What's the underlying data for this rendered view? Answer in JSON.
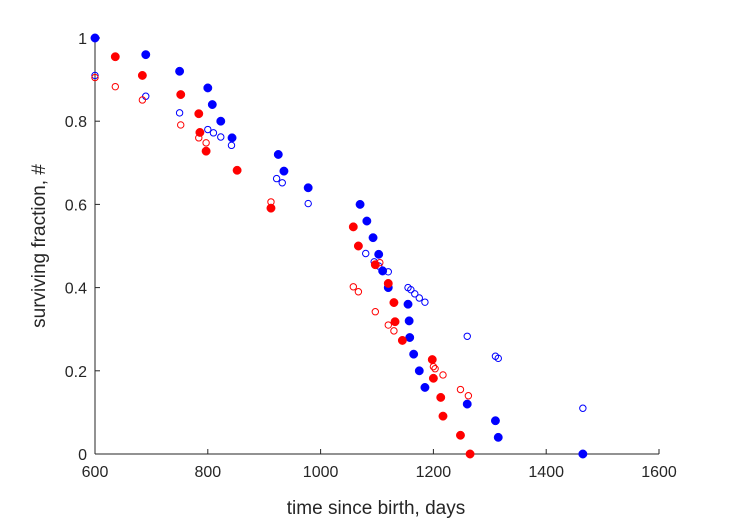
{
  "chart_data": {
    "type": "scatter",
    "title": "",
    "xlabel": "time since birth, days",
    "ylabel": "surviving fraction, #",
    "xlim": [
      600,
      1600
    ],
    "ylim": [
      0,
      1
    ],
    "xticks": [
      600,
      800,
      1000,
      1200,
      1400,
      1600
    ],
    "yticks": [
      0,
      0.2,
      0.4,
      0.6,
      0.8,
      1
    ],
    "xtick_labels": [
      "600",
      "800",
      "1000",
      "1200",
      "1400",
      "1600"
    ],
    "ytick_labels": [
      "0",
      "0.2",
      "0.4",
      "0.6",
      "0.8",
      "1"
    ],
    "grid": false,
    "legend": "none",
    "series": [
      {
        "color": "#0000ff",
        "marker": "filled",
        "points": [
          [
            600,
            1.0
          ],
          [
            690,
            0.96
          ],
          [
            750,
            0.92
          ],
          [
            800,
            0.88
          ],
          [
            808,
            0.84
          ],
          [
            823,
            0.8
          ],
          [
            843,
            0.76
          ],
          [
            925,
            0.72
          ],
          [
            935,
            0.68
          ],
          [
            978,
            0.64
          ],
          [
            1070,
            0.6
          ],
          [
            1082,
            0.56
          ],
          [
            1093,
            0.52
          ],
          [
            1103,
            0.48
          ],
          [
            1110,
            0.44
          ],
          [
            1120,
            0.4
          ],
          [
            1155,
            0.36
          ],
          [
            1157,
            0.32
          ],
          [
            1158,
            0.28
          ],
          [
            1165,
            0.24
          ],
          [
            1175,
            0.2
          ],
          [
            1185,
            0.16
          ],
          [
            1260,
            0.12
          ],
          [
            1310,
            0.08
          ],
          [
            1315,
            0.04
          ],
          [
            1465,
            0.0
          ]
        ]
      },
      {
        "color": "#0000ff",
        "marker": "open",
        "points": [
          [
            600,
            0.91
          ],
          [
            690,
            0.86
          ],
          [
            750,
            0.82
          ],
          [
            800,
            0.78
          ],
          [
            810,
            0.772
          ],
          [
            823,
            0.762
          ],
          [
            842,
            0.742
          ],
          [
            922,
            0.662
          ],
          [
            932,
            0.652
          ],
          [
            978,
            0.602
          ],
          [
            1068,
            0.5
          ],
          [
            1080,
            0.482
          ],
          [
            1095,
            0.462
          ],
          [
            1103,
            0.452
          ],
          [
            1110,
            0.442
          ],
          [
            1120,
            0.438
          ],
          [
            1155,
            0.4
          ],
          [
            1160,
            0.395
          ],
          [
            1167,
            0.385
          ],
          [
            1175,
            0.375
          ],
          [
            1185,
            0.365
          ],
          [
            1260,
            0.283
          ],
          [
            1310,
            0.235
          ],
          [
            1315,
            0.23
          ],
          [
            1465,
            0.11
          ]
        ]
      },
      {
        "color": "#ff0000",
        "marker": "filled",
        "points": [
          [
            636,
            0.955
          ],
          [
            684,
            0.91
          ],
          [
            752,
            0.864
          ],
          [
            784,
            0.818
          ],
          [
            786,
            0.773
          ],
          [
            797,
            0.728
          ],
          [
            852,
            0.682
          ],
          [
            912,
            0.591
          ],
          [
            1058,
            0.546
          ],
          [
            1067,
            0.5
          ],
          [
            1097,
            0.455
          ],
          [
            1120,
            0.41
          ],
          [
            1130,
            0.364
          ],
          [
            1132,
            0.318
          ],
          [
            1145,
            0.273
          ],
          [
            1198,
            0.227
          ],
          [
            1200,
            0.182
          ],
          [
            1213,
            0.136
          ],
          [
            1217,
            0.091
          ],
          [
            1248,
            0.045
          ],
          [
            1265,
            0.0
          ]
        ]
      },
      {
        "color": "#ff0000",
        "marker": "open",
        "points": [
          [
            600,
            0.905
          ],
          [
            636,
            0.883
          ],
          [
            684,
            0.851
          ],
          [
            752,
            0.791
          ],
          [
            784,
            0.76
          ],
          [
            797,
            0.748
          ],
          [
            912,
            0.606
          ],
          [
            1058,
            0.402
          ],
          [
            1067,
            0.39
          ],
          [
            1097,
            0.342
          ],
          [
            1105,
            0.46
          ],
          [
            1120,
            0.31
          ],
          [
            1130,
            0.296
          ],
          [
            1200,
            0.21
          ],
          [
            1203,
            0.205
          ],
          [
            1217,
            0.19
          ],
          [
            1248,
            0.155
          ],
          [
            1262,
            0.14
          ]
        ]
      }
    ]
  }
}
